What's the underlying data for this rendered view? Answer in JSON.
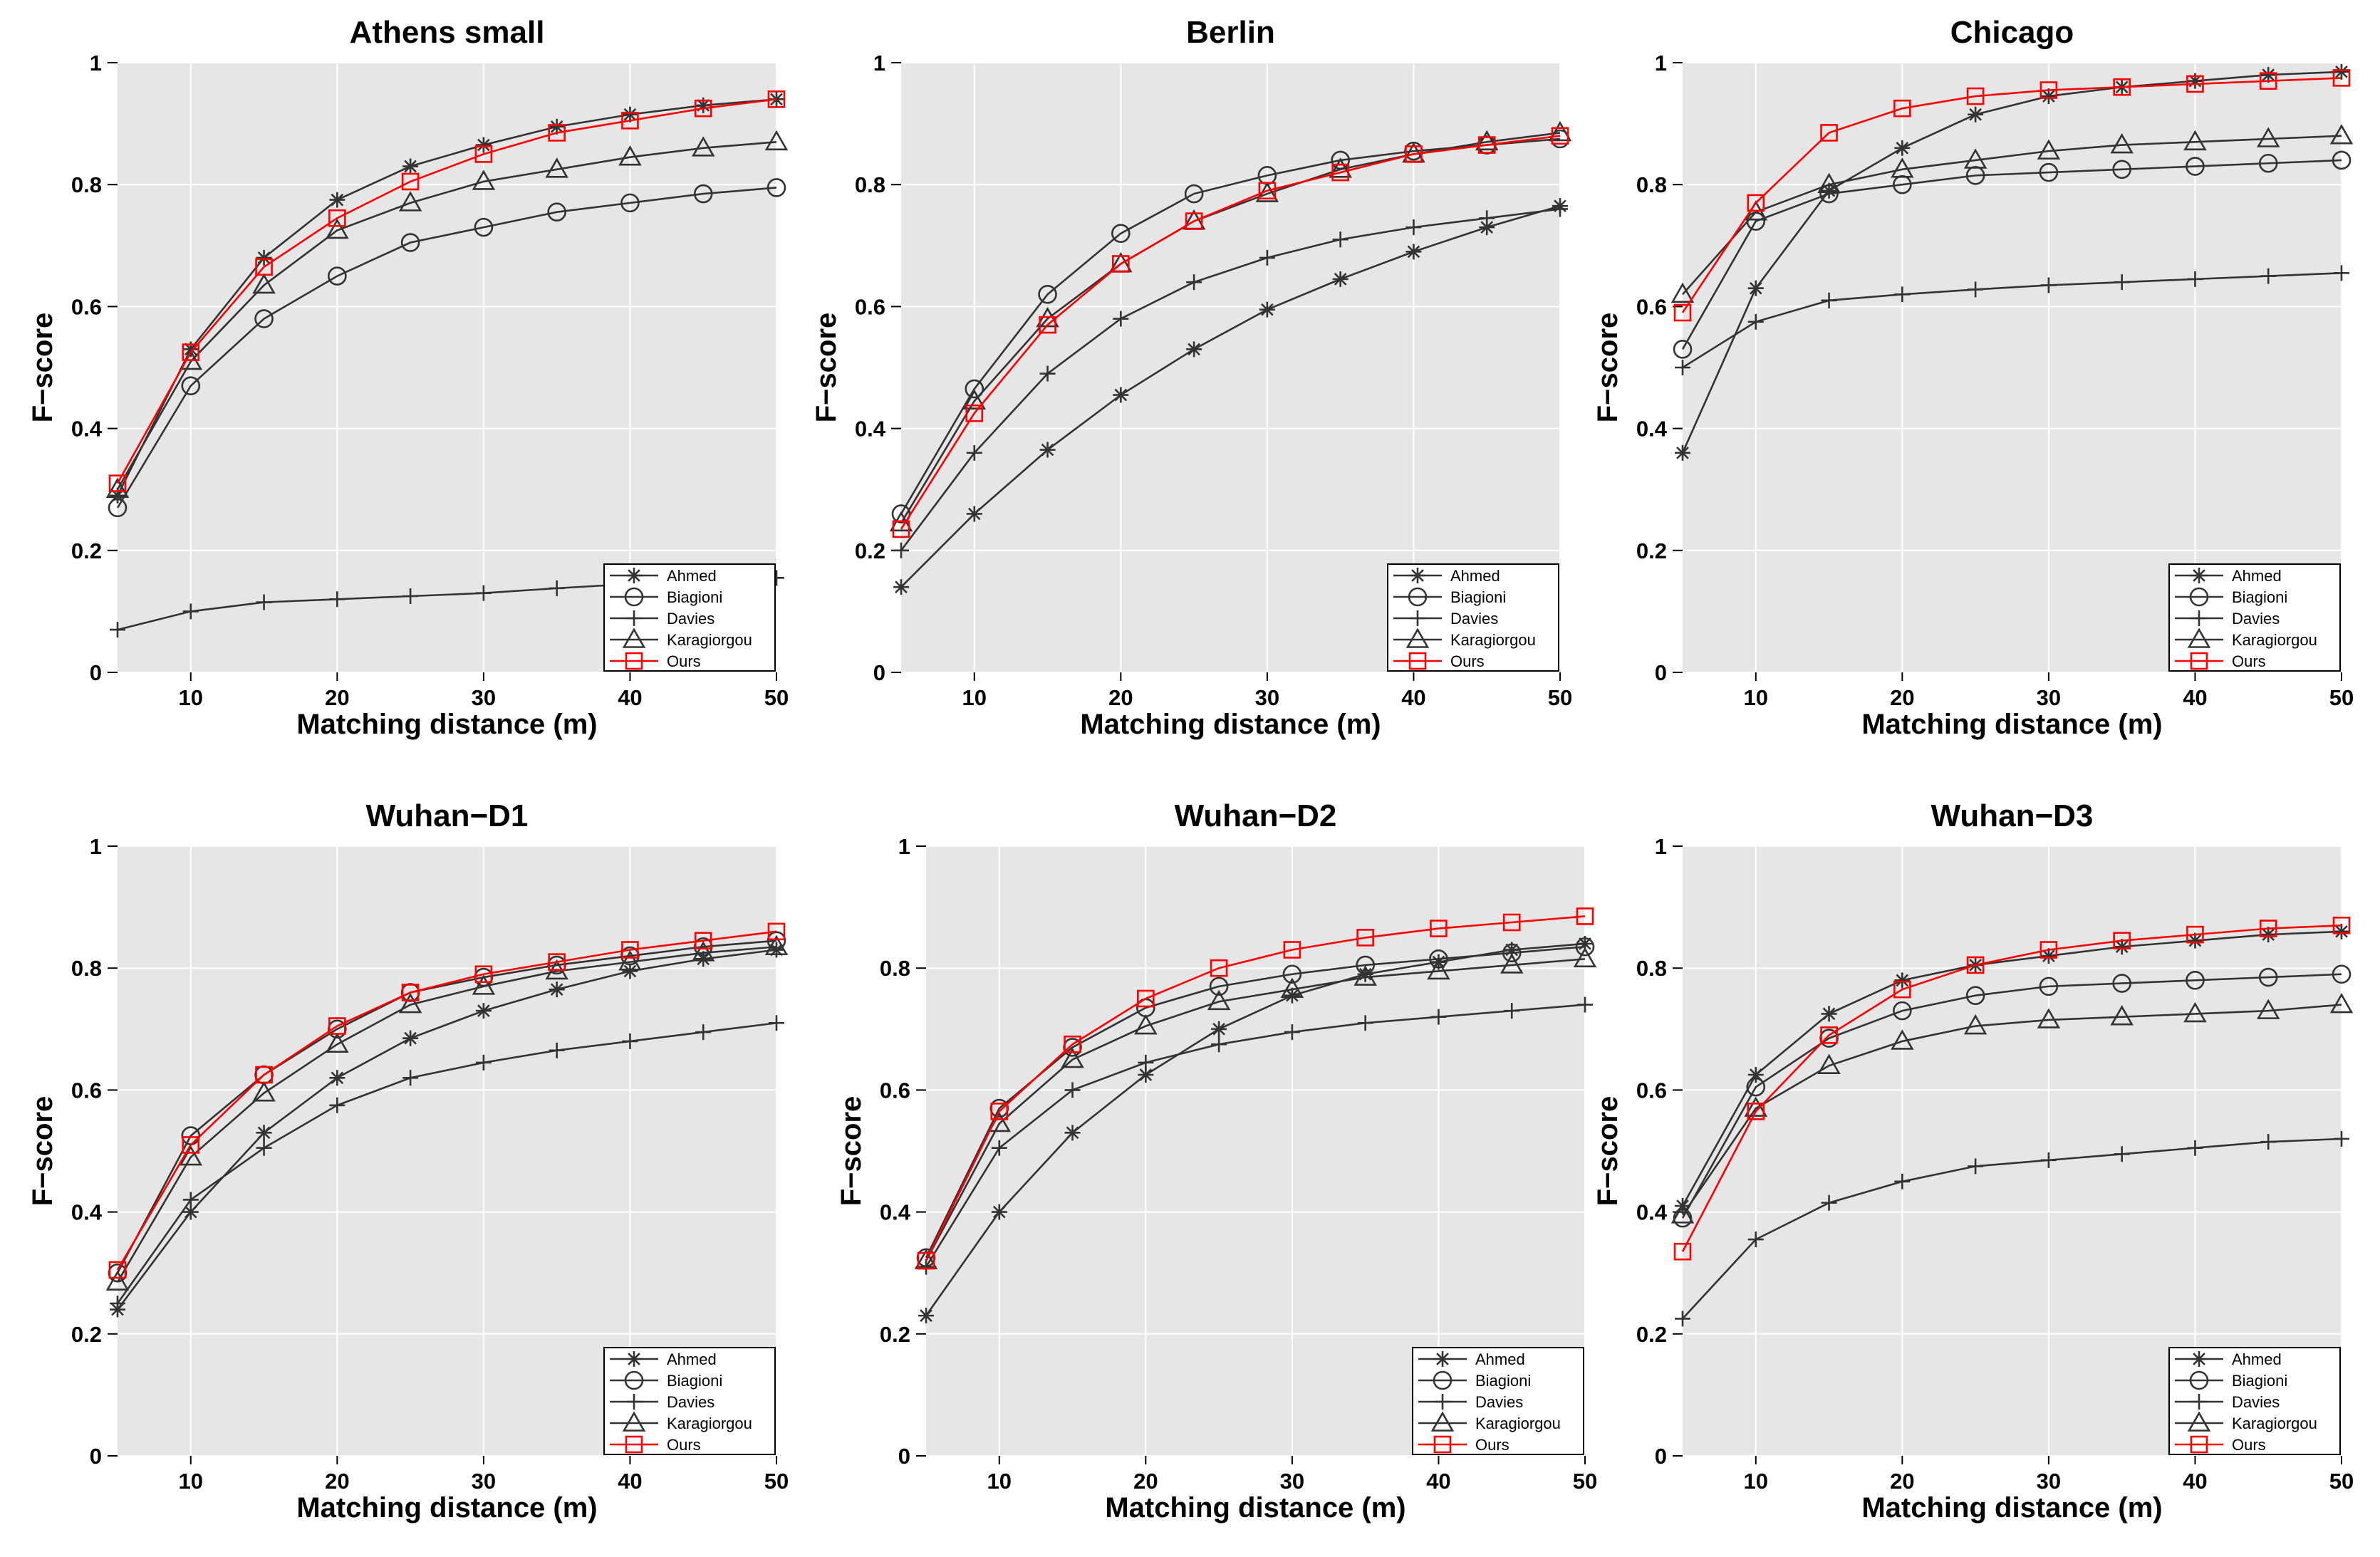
{
  "figure": {
    "x_ticks": [
      10,
      20,
      30,
      40,
      50
    ],
    "y_ticks": [
      0,
      0.2,
      0.4,
      0.6,
      0.8,
      1
    ],
    "y_tick_labels": [
      "0",
      "0.2",
      "0.4",
      "0.6",
      "0.8",
      "1"
    ],
    "x_tick_labels": [
      "10",
      "20",
      "30",
      "40",
      "50"
    ],
    "legend_labels": [
      "Ahmed",
      "Biagioni",
      "Davies",
      "Karagiorgou",
      "Ours"
    ],
    "colors": {
      "panel_bg": "#e6e6e6",
      "grid": "#ffffff",
      "series_default": "#333333",
      "ours": "#ff0000"
    }
  },
  "chart_data": [
    {
      "type": "line",
      "title": "Athens small",
      "xlabel": "Matching distance (m)",
      "ylabel": "F−score",
      "xlim": [
        5,
        50
      ],
      "ylim": [
        0,
        1
      ],
      "x": [
        5,
        10,
        15,
        20,
        25,
        30,
        35,
        40,
        45,
        50
      ],
      "legend": "bottom-right",
      "series": [
        {
          "name": "Ahmed",
          "marker": "star",
          "values": [
            0.29,
            0.53,
            0.68,
            0.775,
            0.83,
            0.865,
            0.895,
            0.915,
            0.93,
            0.94
          ]
        },
        {
          "name": "Biagioni",
          "marker": "circle",
          "values": [
            0.27,
            0.47,
            0.58,
            0.65,
            0.705,
            0.73,
            0.755,
            0.77,
            0.785,
            0.795
          ]
        },
        {
          "name": "Davies",
          "marker": "plus",
          "values": [
            0.07,
            0.1,
            0.115,
            0.12,
            0.125,
            0.13,
            0.138,
            0.145,
            0.15,
            0.155
          ]
        },
        {
          "name": "Karagiorgou",
          "marker": "triangle",
          "values": [
            0.3,
            0.51,
            0.635,
            0.725,
            0.77,
            0.805,
            0.825,
            0.845,
            0.86,
            0.87
          ]
        },
        {
          "name": "Ours",
          "marker": "square",
          "values": [
            0.31,
            0.525,
            0.665,
            0.745,
            0.805,
            0.85,
            0.885,
            0.905,
            0.925,
            0.94
          ]
        }
      ]
    },
    {
      "type": "line",
      "title": "Berlin",
      "xlabel": "Matching distance (m)",
      "ylabel": "F−score",
      "xlim": [
        5,
        50
      ],
      "ylim": [
        0,
        1
      ],
      "x": [
        5,
        10,
        15,
        20,
        25,
        30,
        35,
        40,
        45,
        50
      ],
      "legend": "bottom-right",
      "series": [
        {
          "name": "Ahmed",
          "marker": "star",
          "values": [
            0.14,
            0.26,
            0.365,
            0.455,
            0.53,
            0.595,
            0.645,
            0.69,
            0.73,
            0.765
          ]
        },
        {
          "name": "Biagioni",
          "marker": "circle",
          "values": [
            0.26,
            0.465,
            0.62,
            0.72,
            0.785,
            0.815,
            0.84,
            0.855,
            0.865,
            0.875
          ]
        },
        {
          "name": "Davies",
          "marker": "plus",
          "values": [
            0.2,
            0.36,
            0.49,
            0.58,
            0.64,
            0.68,
            0.71,
            0.73,
            0.745,
            0.76
          ]
        },
        {
          "name": "Karagiorgou",
          "marker": "triangle",
          "values": [
            0.245,
            0.445,
            0.58,
            0.67,
            0.74,
            0.785,
            0.825,
            0.85,
            0.87,
            0.885
          ]
        },
        {
          "name": "Ours",
          "marker": "square",
          "values": [
            0.235,
            0.425,
            0.57,
            0.67,
            0.74,
            0.79,
            0.82,
            0.85,
            0.865,
            0.88
          ]
        }
      ]
    },
    {
      "type": "line",
      "title": "Chicago",
      "xlabel": "Matching distance (m)",
      "ylabel": "F−score",
      "xlim": [
        5,
        50
      ],
      "ylim": [
        0,
        1
      ],
      "x": [
        5,
        10,
        15,
        20,
        25,
        30,
        35,
        40,
        45,
        50
      ],
      "legend": "bottom-right",
      "series": [
        {
          "name": "Ahmed",
          "marker": "star",
          "values": [
            0.36,
            0.63,
            0.79,
            0.86,
            0.915,
            0.945,
            0.96,
            0.97,
            0.98,
            0.985
          ]
        },
        {
          "name": "Biagioni",
          "marker": "circle",
          "values": [
            0.53,
            0.74,
            0.785,
            0.8,
            0.815,
            0.82,
            0.825,
            0.83,
            0.835,
            0.84
          ]
        },
        {
          "name": "Davies",
          "marker": "plus",
          "values": [
            0.5,
            0.575,
            0.61,
            0.62,
            0.628,
            0.635,
            0.64,
            0.645,
            0.65,
            0.655
          ]
        },
        {
          "name": "Karagiorgou",
          "marker": "triangle",
          "values": [
            0.62,
            0.755,
            0.8,
            0.825,
            0.84,
            0.855,
            0.865,
            0.87,
            0.875,
            0.88
          ]
        },
        {
          "name": "Ours",
          "marker": "square",
          "values": [
            0.59,
            0.77,
            0.885,
            0.925,
            0.945,
            0.955,
            0.96,
            0.965,
            0.97,
            0.975
          ]
        }
      ]
    },
    {
      "type": "line",
      "title": "Wuhan−D1",
      "xlabel": "Matching distance (m)",
      "ylabel": "F−score",
      "xlim": [
        5,
        50
      ],
      "ylim": [
        0,
        1
      ],
      "x": [
        5,
        10,
        15,
        20,
        25,
        30,
        35,
        40,
        45,
        50
      ],
      "legend": "bottom-right",
      "series": [
        {
          "name": "Ahmed",
          "marker": "star",
          "values": [
            0.24,
            0.4,
            0.53,
            0.62,
            0.685,
            0.73,
            0.765,
            0.795,
            0.815,
            0.83
          ]
        },
        {
          "name": "Biagioni",
          "marker": "circle",
          "values": [
            0.3,
            0.525,
            0.625,
            0.7,
            0.76,
            0.785,
            0.805,
            0.82,
            0.835,
            0.845
          ]
        },
        {
          "name": "Davies",
          "marker": "plus",
          "values": [
            0.25,
            0.42,
            0.505,
            0.575,
            0.62,
            0.645,
            0.665,
            0.68,
            0.695,
            0.71
          ]
        },
        {
          "name": "Karagiorgou",
          "marker": "triangle",
          "values": [
            0.285,
            0.49,
            0.595,
            0.675,
            0.74,
            0.77,
            0.795,
            0.81,
            0.825,
            0.835
          ]
        },
        {
          "name": "Ours",
          "marker": "square",
          "values": [
            0.305,
            0.51,
            0.625,
            0.705,
            0.76,
            0.79,
            0.81,
            0.83,
            0.845,
            0.86
          ]
        }
      ]
    },
    {
      "type": "line",
      "title": "Wuhan−D2",
      "xlabel": "Matching distance (m)",
      "ylabel": "F−score",
      "xlim": [
        5,
        50
      ],
      "ylim": [
        0,
        1
      ],
      "x": [
        5,
        10,
        15,
        20,
        25,
        30,
        35,
        40,
        45,
        50
      ],
      "legend": "bottom-right",
      "series": [
        {
          "name": "Ahmed",
          "marker": "star",
          "values": [
            0.23,
            0.4,
            0.53,
            0.625,
            0.7,
            0.755,
            0.79,
            0.81,
            0.83,
            0.84
          ]
        },
        {
          "name": "Biagioni",
          "marker": "circle",
          "values": [
            0.325,
            0.57,
            0.67,
            0.735,
            0.77,
            0.79,
            0.805,
            0.815,
            0.825,
            0.835
          ]
        },
        {
          "name": "Davies",
          "marker": "plus",
          "values": [
            0.31,
            0.505,
            0.6,
            0.645,
            0.675,
            0.695,
            0.71,
            0.72,
            0.73,
            0.74
          ]
        },
        {
          "name": "Karagiorgou",
          "marker": "triangle",
          "values": [
            0.32,
            0.545,
            0.65,
            0.705,
            0.745,
            0.765,
            0.785,
            0.795,
            0.805,
            0.815
          ]
        },
        {
          "name": "Ours",
          "marker": "square",
          "values": [
            0.32,
            0.565,
            0.675,
            0.75,
            0.8,
            0.83,
            0.85,
            0.865,
            0.875,
            0.885
          ]
        }
      ]
    },
    {
      "type": "line",
      "title": "Wuhan−D3",
      "xlabel": "Matching distance (m)",
      "ylabel": "F−score",
      "xlim": [
        5,
        50
      ],
      "ylim": [
        0,
        1
      ],
      "x": [
        5,
        10,
        15,
        20,
        25,
        30,
        35,
        40,
        45,
        50
      ],
      "legend": "bottom-right",
      "series": [
        {
          "name": "Ahmed",
          "marker": "star",
          "values": [
            0.41,
            0.625,
            0.725,
            0.78,
            0.805,
            0.82,
            0.835,
            0.845,
            0.855,
            0.86
          ]
        },
        {
          "name": "Biagioni",
          "marker": "circle",
          "values": [
            0.39,
            0.605,
            0.685,
            0.73,
            0.755,
            0.77,
            0.775,
            0.78,
            0.785,
            0.79
          ]
        },
        {
          "name": "Davies",
          "marker": "plus",
          "values": [
            0.225,
            0.355,
            0.415,
            0.45,
            0.475,
            0.485,
            0.495,
            0.505,
            0.515,
            0.52
          ]
        },
        {
          "name": "Karagiorgou",
          "marker": "triangle",
          "values": [
            0.395,
            0.57,
            0.64,
            0.68,
            0.705,
            0.715,
            0.72,
            0.725,
            0.73,
            0.74
          ]
        },
        {
          "name": "Ours",
          "marker": "square",
          "values": [
            0.335,
            0.565,
            0.69,
            0.765,
            0.805,
            0.83,
            0.845,
            0.855,
            0.865,
            0.87
          ]
        }
      ]
    }
  ]
}
